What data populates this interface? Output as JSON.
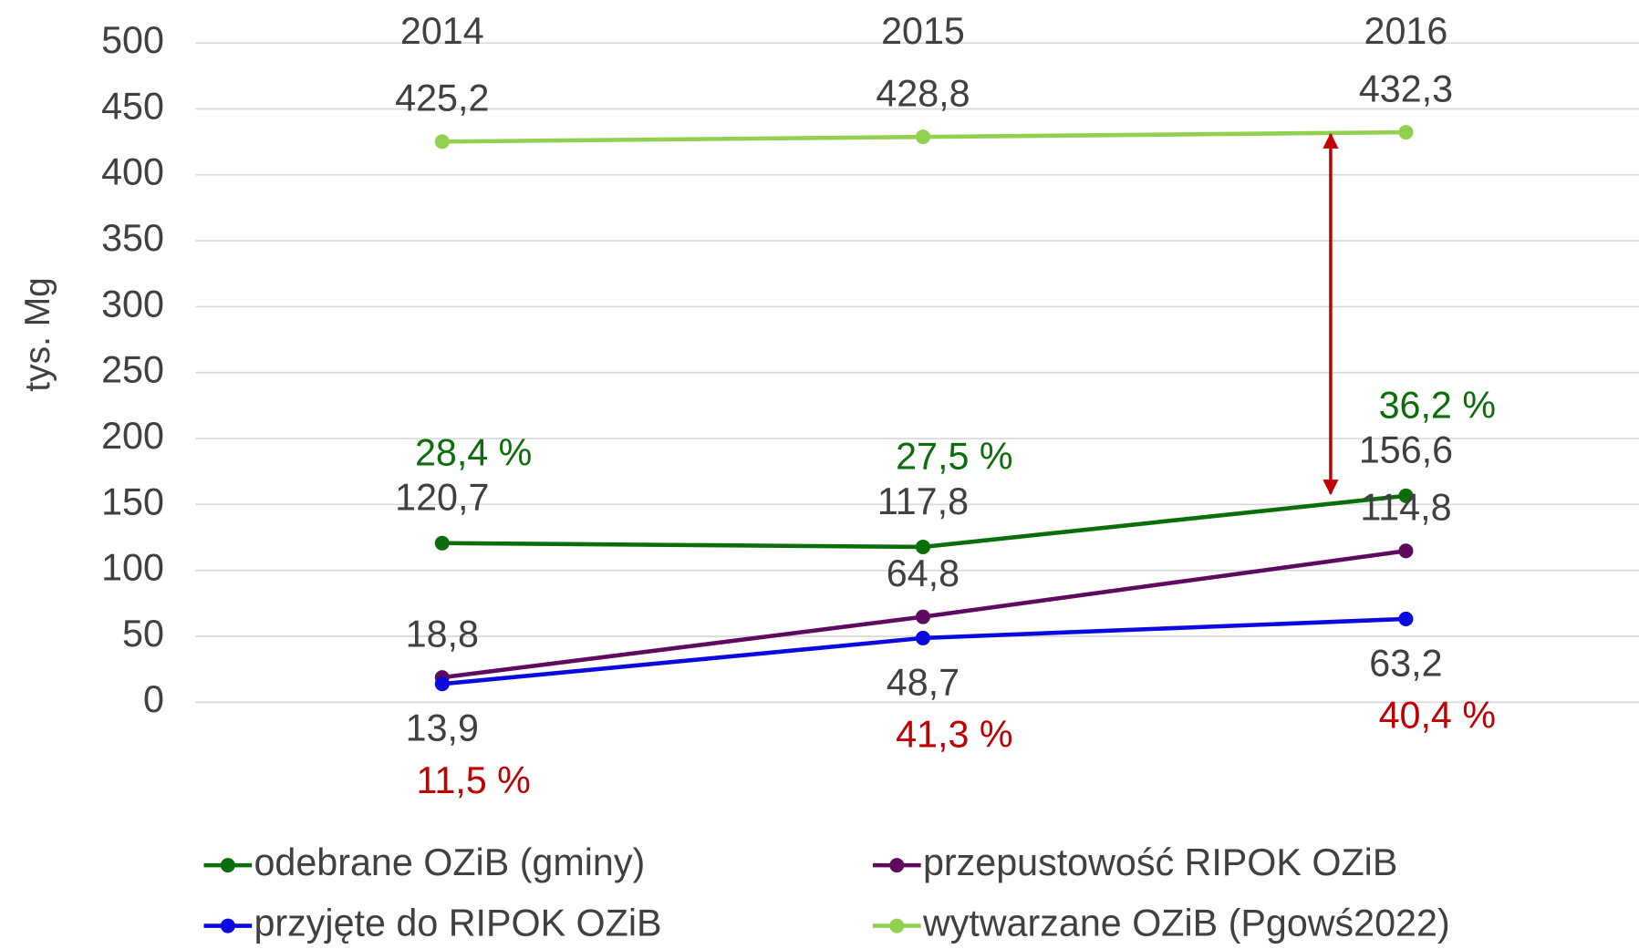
{
  "chart_data": {
    "type": "line",
    "y_label": "tys. Mg",
    "categories": [
      "2014",
      "2015",
      "2016"
    ],
    "ylim": [
      0,
      500
    ],
    "yticks": [
      0,
      50,
      100,
      150,
      200,
      250,
      300,
      350,
      400,
      450,
      500
    ],
    "grid": true,
    "legend": "bottom",
    "series": [
      {
        "name": "odebrane OZiB (gminy)",
        "color": "#0b6e0b",
        "values": [
          120.7,
          117.8,
          156.6
        ],
        "value_labels": [
          "120,7",
          "117,8",
          "156,6"
        ],
        "share_labels": [
          "28,4 %",
          "27,5 %",
          "36,2 %"
        ],
        "share_color": "#0b6e0b"
      },
      {
        "name": "przepustowość RIPOK OZiB",
        "color": "#5e0a5e",
        "values": [
          18.8,
          64.8,
          114.8
        ],
        "value_labels": [
          "18,8",
          "64,8",
          "114,8"
        ]
      },
      {
        "name": "przyjęte do RIPOK OZiB",
        "color": "#0a0ae0",
        "values": [
          13.9,
          48.7,
          63.2
        ],
        "value_labels": [
          "13,9",
          "48,7",
          "63,2"
        ],
        "share_labels": [
          "11,5 %",
          "41,3 %",
          "40,4 %"
        ],
        "share_color": "#c00000"
      },
      {
        "name": "wytwarzane OZiB (Pgowś2022)",
        "color": "#92d050",
        "values": [
          425.2,
          428.8,
          432.3
        ],
        "value_labels": [
          "425,2",
          "428,8",
          "432,3"
        ]
      }
    ],
    "arrow_color": "#c00000"
  }
}
